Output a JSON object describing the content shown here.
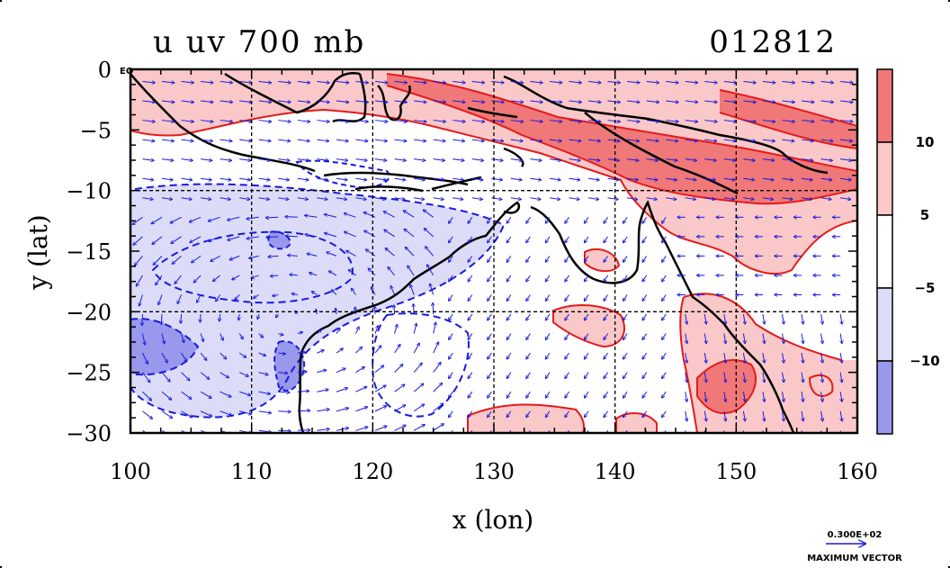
{
  "title_left": "u uv 700 mb",
  "title_right": "012812",
  "chart_data": {
    "type": "heatmap",
    "xlabel": "x (lon)",
    "ylabel": "y (lat)",
    "xlim": [
      100,
      160
    ],
    "ylim": [
      -30,
      0
    ],
    "x_ticks": [
      "100",
      "110",
      "120",
      "130",
      "140",
      "150",
      "160"
    ],
    "y_ticks": [
      "0",
      "−5",
      "−10",
      "−15",
      "−20",
      "−25",
      "−30"
    ],
    "y_tick_values": [
      0,
      -5,
      -10,
      -15,
      -20,
      -25,
      -30
    ],
    "x_tick_values": [
      100,
      110,
      120,
      130,
      140,
      150,
      160
    ],
    "eq_label": "EQ",
    "grid": true,
    "colorbar": {
      "labels": [
        "10",
        "5",
        "−5",
        "−10"
      ],
      "colors": [
        "#f07878",
        "#fac8c8",
        "#ffffff",
        "#dcdcf8",
        "#9898ec"
      ]
    },
    "colors": {
      "positive_contour": "#e31b1b",
      "negative_contour": "#1a1adc",
      "vectors": "#1a1adc",
      "coast": "#000000"
    }
  },
  "vector_legend": {
    "value": "0.300E+02",
    "label": "MAXIMUM VECTOR"
  }
}
